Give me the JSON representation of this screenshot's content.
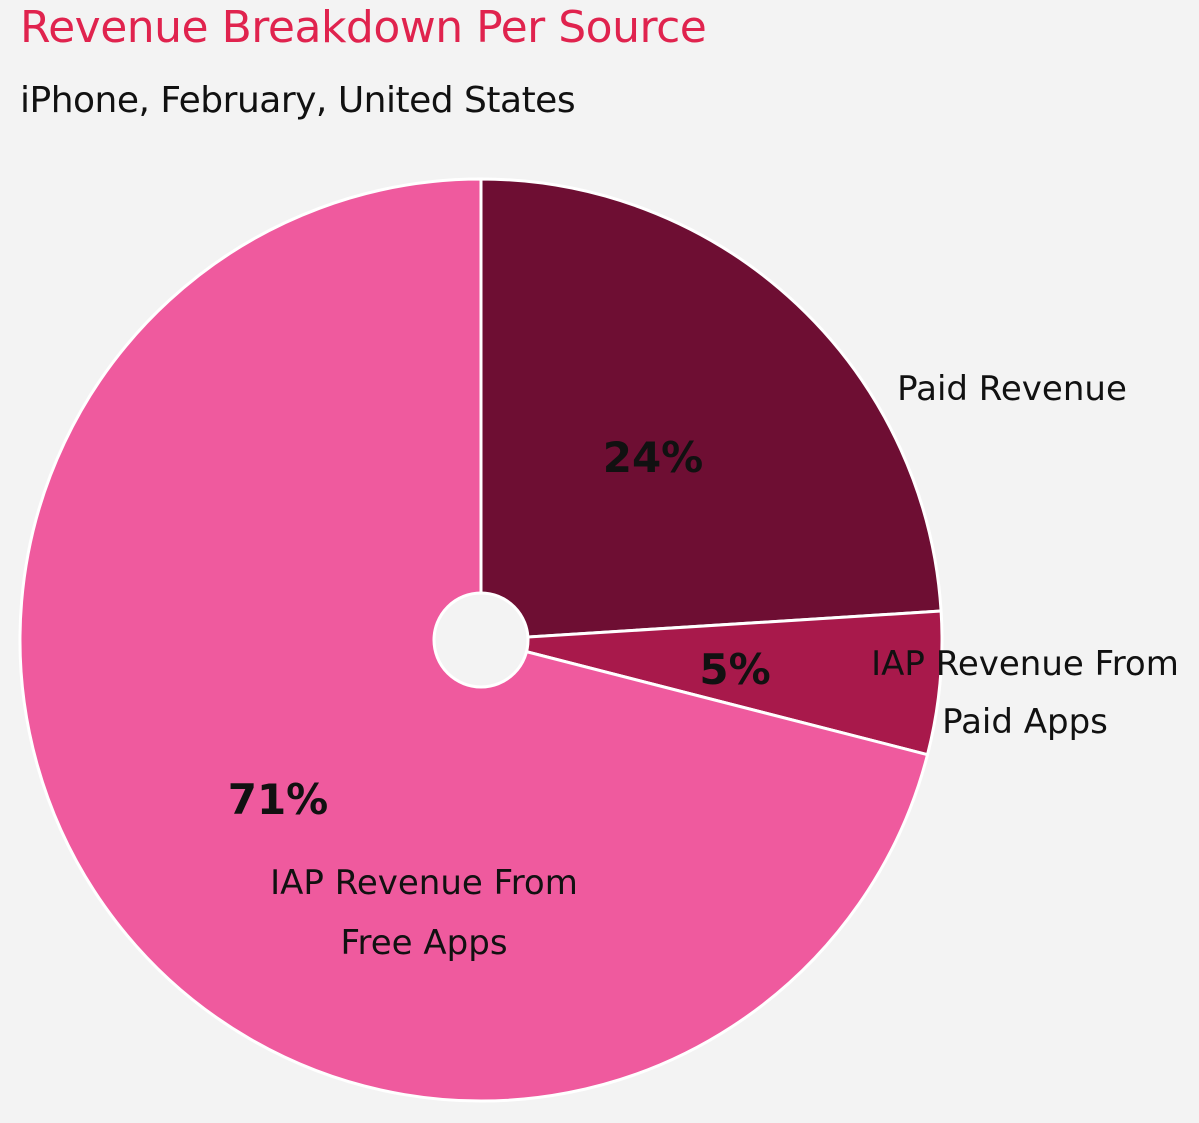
{
  "title": "Revenue Breakdown Per Source",
  "subtitle": "iPhone, February, United States",
  "chart_data": {
    "type": "pie",
    "donut": true,
    "slices": [
      {
        "label_lines": [
          "Paid Revenue"
        ],
        "value": 24,
        "value_label": "24%",
        "color": "#6e0e33"
      },
      {
        "label_lines": [
          "IAP Revenue From",
          "Paid Apps"
        ],
        "value": 5,
        "value_label": "5%",
        "color": "#a8194b"
      },
      {
        "label_lines": [
          "IAP Revenue From",
          "Free Apps"
        ],
        "value": 71,
        "value_label": "71%",
        "color": "#ef5a9e"
      }
    ],
    "start_angle": "12 o'clock",
    "direction": "clockwise",
    "colors": {
      "background": "#f3f3f3",
      "title": "#e0234e",
      "separator": "#ffffff"
    }
  }
}
